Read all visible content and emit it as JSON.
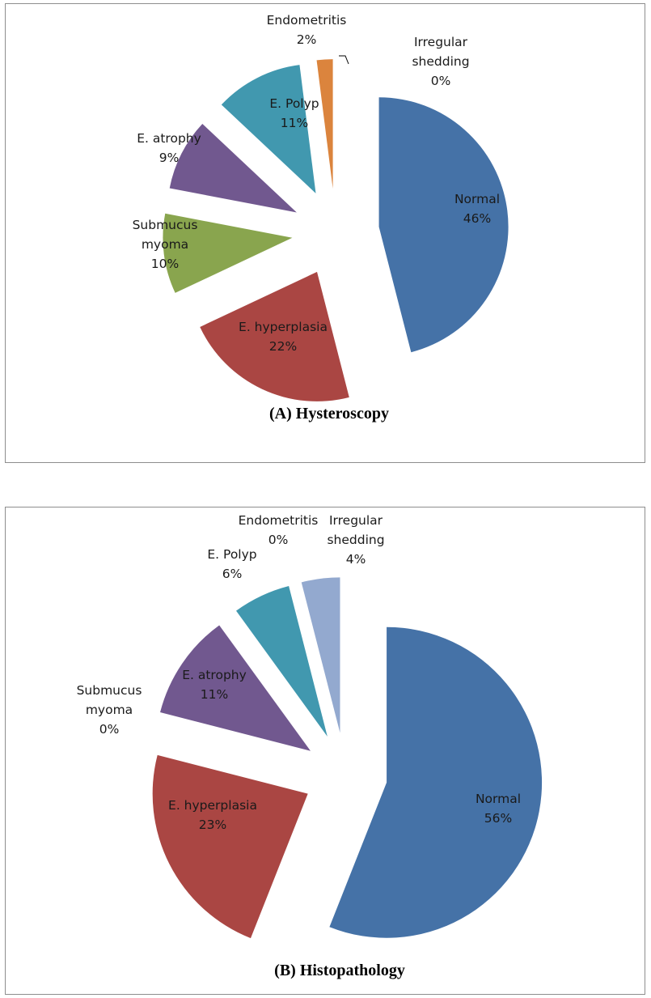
{
  "colors": {
    "Normal": "#4572A7",
    "E. hyperplasia": "#AA4643",
    "Submucus myoma": "#89A54E",
    "E. atrophy": "#71588F",
    "E. Polyp": "#4198AF",
    "Endometritis": "#DB843D",
    "Irregular shedding": "#93A9CF"
  },
  "chart_data": [
    {
      "type": "pie",
      "title": "(A) Hysteroscopy",
      "slices": [
        {
          "label": "Normal",
          "percent_label": "46%",
          "value": 46
        },
        {
          "label": "E. hyperplasia",
          "percent_label": "22%",
          "value": 22
        },
        {
          "label": "Submucus myoma",
          "percent_label": "10%",
          "value": 10
        },
        {
          "label": "E. atrophy",
          "percent_label": "9%",
          "value": 9
        },
        {
          "label": "E. Polyp",
          "percent_label": "11%",
          "value": 11
        },
        {
          "label": "Endometritis",
          "percent_label": "2%",
          "value": 2
        },
        {
          "label": "Irregular shedding",
          "percent_label": "0%",
          "value": 0
        }
      ]
    },
    {
      "type": "pie",
      "title": "(B) Histopathology",
      "slices": [
        {
          "label": "Normal",
          "percent_label": "56%",
          "value": 56
        },
        {
          "label": "E. hyperplasia",
          "percent_label": "23%",
          "value": 23
        },
        {
          "label": "Submucus myoma",
          "percent_label": "0%",
          "value": 0
        },
        {
          "label": "E. atrophy",
          "percent_label": "11%",
          "value": 11
        },
        {
          "label": "E. Polyp",
          "percent_label": "6%",
          "value": 6
        },
        {
          "label": "Endometritis",
          "percent_label": "0%",
          "value": 0
        },
        {
          "label": "Irregular shedding",
          "percent_label": "4%",
          "value": 4
        }
      ]
    }
  ]
}
